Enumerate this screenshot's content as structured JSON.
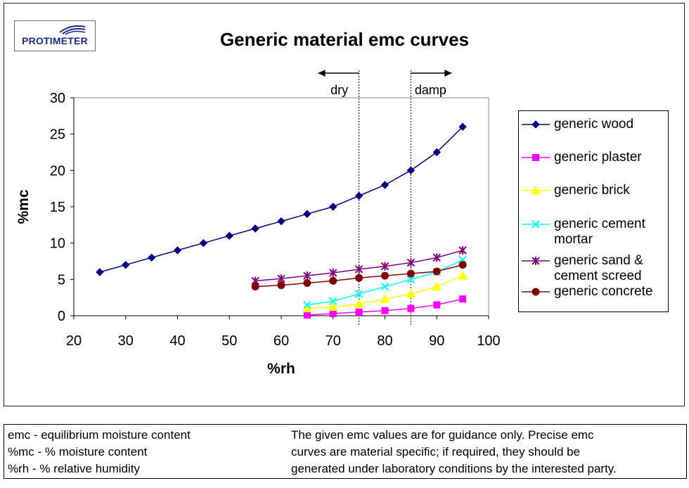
{
  "logo": {
    "text": "PROTIMETER"
  },
  "chart_data": {
    "type": "line",
    "title": "Generic material emc curves",
    "xlabel": "%rh",
    "ylabel": "%mc",
    "xlim": [
      20,
      100
    ],
    "ylim": [
      0,
      30
    ],
    "xticks": [
      20,
      30,
      40,
      50,
      60,
      70,
      80,
      90,
      100
    ],
    "yticks": [
      0,
      5,
      10,
      15,
      20,
      25,
      30
    ],
    "grid": false,
    "legend_position": "right",
    "series": [
      {
        "name": "generic wood",
        "color": "#000080",
        "marker": "diamond",
        "x": [
          25,
          30,
          35,
          40,
          45,
          50,
          55,
          60,
          65,
          70,
          75,
          80,
          85,
          90,
          95
        ],
        "y": [
          6,
          7,
          8,
          9,
          10,
          11,
          12,
          13,
          14,
          15,
          16.5,
          18,
          20,
          22.5,
          26
        ]
      },
      {
        "name": "generic plaster",
        "color": "#ff00ff",
        "marker": "square",
        "x": [
          65,
          70,
          75,
          80,
          85,
          90,
          95
        ],
        "y": [
          0.1,
          0.3,
          0.5,
          0.7,
          1.0,
          1.5,
          2.3
        ]
      },
      {
        "name": "generic brick",
        "color": "#ffff00",
        "marker": "triangle",
        "x": [
          65,
          70,
          75,
          80,
          85,
          90,
          95
        ],
        "y": [
          1.0,
          1.2,
          1.6,
          2.3,
          3.0,
          4.0,
          5.5
        ]
      },
      {
        "name": "generic cement mortar",
        "color": "#00ffff",
        "marker": "x",
        "x": [
          65,
          70,
          75,
          80,
          85,
          90,
          95
        ],
        "y": [
          1.5,
          2.0,
          3.0,
          4.0,
          5.0,
          6.0,
          7.7
        ]
      },
      {
        "name": "generic sand & cement screed",
        "color": "#800080",
        "marker": "star",
        "x": [
          55,
          60,
          65,
          70,
          75,
          80,
          85,
          90,
          95
        ],
        "y": [
          4.8,
          5.1,
          5.5,
          5.9,
          6.4,
          6.8,
          7.3,
          8.0,
          9.0
        ]
      },
      {
        "name": "generic concrete",
        "color": "#800000",
        "marker": "circle",
        "x": [
          55,
          60,
          65,
          70,
          75,
          80,
          85,
          90,
          95
        ],
        "y": [
          4.0,
          4.2,
          4.5,
          4.8,
          5.2,
          5.5,
          5.8,
          6.1,
          7.0
        ]
      }
    ],
    "legend_labels": [
      "generic wood",
      "generic plaster",
      "generic brick",
      "generic cement\nmortar",
      "generic sand &\ncement screed",
      "generic concrete"
    ],
    "annotations": [
      {
        "text": "dry",
        "at_x": 75,
        "arrow": "left"
      },
      {
        "text": "damp",
        "at_x": 85,
        "arrow": "right"
      }
    ]
  },
  "footer": {
    "left": [
      "emc - equilibrium moisture content",
      "%mc - % moisture content",
      "%rh - % relative humidity"
    ],
    "right": [
      "The given emc values are for guidance only. Precise emc",
      "curves are material specific; if required, they should be",
      "generated under laboratory conditions by the interested party."
    ]
  }
}
